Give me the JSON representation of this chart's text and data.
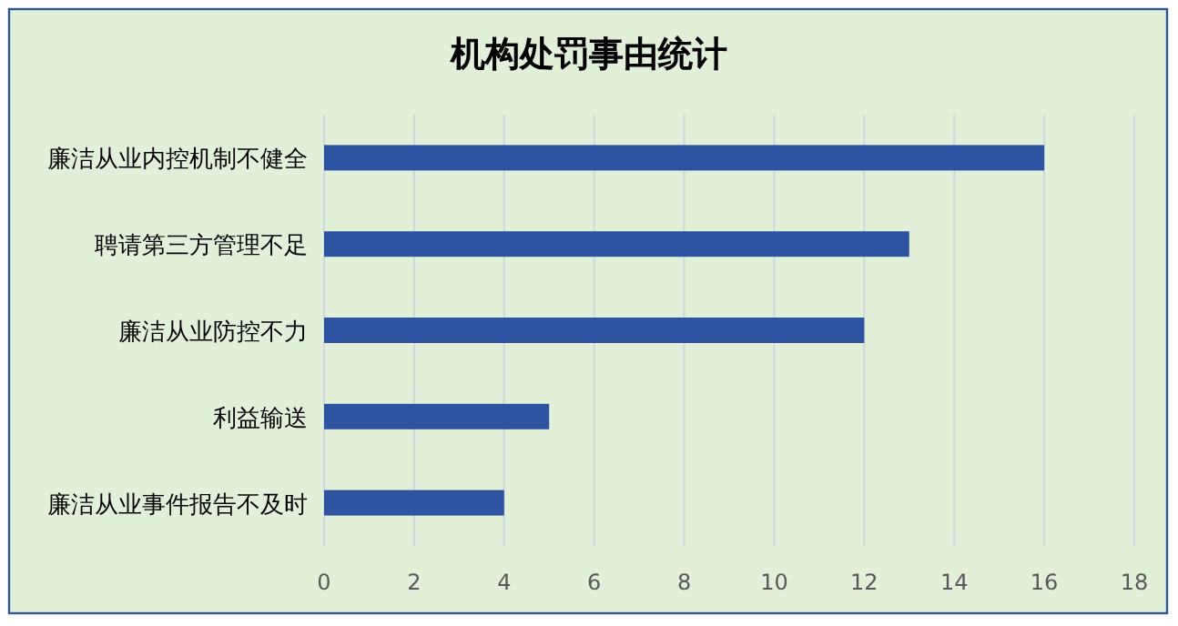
{
  "chart_data": {
    "type": "bar",
    "orientation": "horizontal",
    "title": "机构处罚事由统计",
    "categories": [
      "廉洁从业内控机制不健全",
      "聘请第三方管理不足",
      "廉洁从业防控不力",
      "利益输送",
      "廉洁从业事件报告不及时"
    ],
    "values": [
      16,
      13,
      12,
      5,
      4
    ],
    "color": "#2e54a1",
    "xlim": [
      0,
      18
    ],
    "xticks": [
      0,
      2,
      4,
      6,
      8,
      10,
      12,
      14,
      16,
      18
    ],
    "grid": "x"
  }
}
